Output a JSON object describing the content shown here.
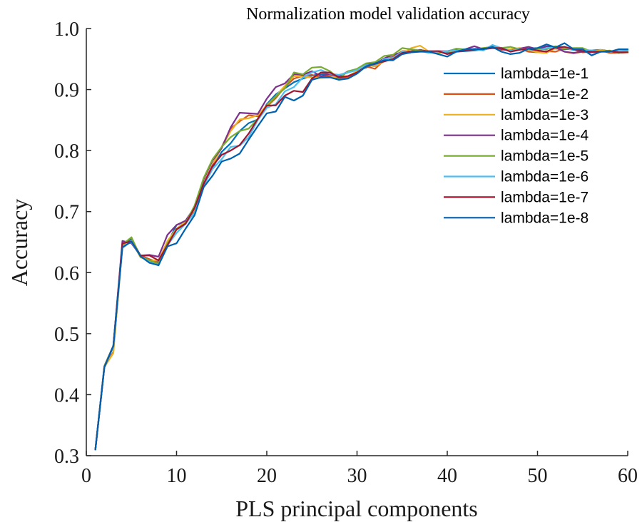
{
  "chart_data": {
    "type": "line",
    "title": "Normalization model validation accuracy",
    "xlabel": "PLS principal components",
    "ylabel": "Accuracy",
    "xlim": [
      0,
      60
    ],
    "ylim": [
      0.3,
      1.0
    ],
    "xticks": [
      "0",
      "10",
      "20",
      "30",
      "40",
      "50",
      "60"
    ],
    "yticks": [
      "0.3",
      "0.4",
      "0.5",
      "0.6",
      "0.7",
      "0.8",
      "0.9",
      "1.0"
    ],
    "grid": false,
    "legend_position": "right",
    "x": [
      1,
      2,
      3,
      4,
      5,
      6,
      7,
      8,
      9,
      10,
      11,
      12,
      13,
      14,
      15,
      16,
      17,
      18,
      19,
      20,
      21,
      22,
      23,
      24,
      25,
      26,
      27,
      28,
      29,
      30,
      31,
      32,
      33,
      34,
      35,
      36,
      37,
      38,
      39,
      40,
      41,
      42,
      43,
      44,
      45,
      46,
      47,
      48,
      49,
      50,
      51,
      52,
      53,
      54,
      55,
      56,
      57,
      58,
      59,
      60
    ],
    "series": [
      {
        "name": "lambda=1e-1",
        "color": "#0072BD",
        "values": [
          0.31,
          0.445,
          0.48,
          0.645,
          0.655,
          0.628,
          0.622,
          0.617,
          0.648,
          0.678,
          0.684,
          0.698,
          0.743,
          0.772,
          0.798,
          0.812,
          0.832,
          0.845,
          0.851,
          0.876,
          0.892,
          0.902,
          0.912,
          0.918,
          0.923,
          0.925,
          0.926,
          0.923,
          0.928,
          0.932,
          0.936,
          0.942,
          0.948,
          0.952,
          0.958,
          0.961,
          0.963,
          0.962,
          0.961,
          0.961,
          0.962,
          0.963,
          0.964,
          0.966,
          0.968,
          0.966,
          0.965,
          0.966,
          0.965,
          0.966,
          0.968,
          0.967,
          0.966,
          0.967,
          0.965,
          0.964,
          0.965,
          0.963,
          0.963,
          0.962
        ]
      },
      {
        "name": "lambda=1e-2",
        "color": "#D95319",
        "values": [
          0.31,
          0.445,
          0.47,
          0.645,
          0.652,
          0.627,
          0.622,
          0.616,
          0.65,
          0.671,
          0.682,
          0.702,
          0.746,
          0.777,
          0.806,
          0.836,
          0.848,
          0.858,
          0.856,
          0.872,
          0.886,
          0.904,
          0.918,
          0.922,
          0.924,
          0.92,
          0.922,
          0.917,
          0.92,
          0.927,
          0.938,
          0.934,
          0.948,
          0.954,
          0.963,
          0.963,
          0.965,
          0.962,
          0.962,
          0.962,
          0.966,
          0.964,
          0.967,
          0.965,
          0.969,
          0.965,
          0.966,
          0.967,
          0.962,
          0.961,
          0.963,
          0.962,
          0.967,
          0.965,
          0.961,
          0.962,
          0.964,
          0.96,
          0.96,
          0.961
        ]
      },
      {
        "name": "lambda=1e-3",
        "color": "#EDB120",
        "values": [
          0.31,
          0.445,
          0.468,
          0.643,
          0.652,
          0.625,
          0.62,
          0.62,
          0.652,
          0.672,
          0.684,
          0.703,
          0.742,
          0.776,
          0.806,
          0.832,
          0.851,
          0.853,
          0.858,
          0.874,
          0.889,
          0.906,
          0.922,
          0.921,
          0.92,
          0.919,
          0.92,
          0.921,
          0.922,
          0.93,
          0.94,
          0.938,
          0.946,
          0.952,
          0.958,
          0.968,
          0.972,
          0.962,
          0.963,
          0.962,
          0.964,
          0.965,
          0.967,
          0.966,
          0.97,
          0.966,
          0.966,
          0.968,
          0.965,
          0.961,
          0.96,
          0.968,
          0.962,
          0.959,
          0.962,
          0.962,
          0.965,
          0.962,
          0.962,
          0.961
        ]
      },
      {
        "name": "lambda=1e-4",
        "color": "#7E2F8E",
        "values": [
          0.31,
          0.447,
          0.48,
          0.652,
          0.648,
          0.628,
          0.629,
          0.626,
          0.662,
          0.678,
          0.685,
          0.707,
          0.753,
          0.784,
          0.804,
          0.838,
          0.862,
          0.861,
          0.86,
          0.885,
          0.904,
          0.91,
          0.925,
          0.924,
          0.93,
          0.922,
          0.925,
          0.921,
          0.93,
          0.932,
          0.941,
          0.942,
          0.951,
          0.957,
          0.961,
          0.962,
          0.965,
          0.962,
          0.963,
          0.963,
          0.966,
          0.966,
          0.971,
          0.966,
          0.972,
          0.966,
          0.964,
          0.967,
          0.97,
          0.966,
          0.971,
          0.969,
          0.962,
          0.96,
          0.962,
          0.961,
          0.962,
          0.963,
          0.96,
          0.962
        ]
      },
      {
        "name": "lambda=1e-5",
        "color": "#77AC30",
        "values": [
          0.31,
          0.447,
          0.48,
          0.646,
          0.658,
          0.626,
          0.62,
          0.614,
          0.648,
          0.67,
          0.681,
          0.71,
          0.755,
          0.786,
          0.806,
          0.822,
          0.832,
          0.836,
          0.852,
          0.872,
          0.889,
          0.902,
          0.928,
          0.925,
          0.936,
          0.937,
          0.93,
          0.918,
          0.93,
          0.934,
          0.943,
          0.945,
          0.955,
          0.957,
          0.968,
          0.966,
          0.964,
          0.962,
          0.96,
          0.962,
          0.967,
          0.966,
          0.966,
          0.968,
          0.97,
          0.968,
          0.97,
          0.966,
          0.967,
          0.966,
          0.966,
          0.971,
          0.967,
          0.968,
          0.968,
          0.962,
          0.962,
          0.964,
          0.96,
          0.962
        ]
      },
      {
        "name": "lambda=1e-6",
        "color": "#4DBEEE",
        "values": [
          0.31,
          0.445,
          0.478,
          0.643,
          0.65,
          0.627,
          0.617,
          0.612,
          0.645,
          0.665,
          0.68,
          0.698,
          0.742,
          0.77,
          0.786,
          0.806,
          0.808,
          0.822,
          0.85,
          0.87,
          0.876,
          0.897,
          0.904,
          0.92,
          0.928,
          0.932,
          0.926,
          0.924,
          0.928,
          0.932,
          0.94,
          0.94,
          0.95,
          0.952,
          0.962,
          0.961,
          0.963,
          0.96,
          0.962,
          0.963,
          0.964,
          0.966,
          0.966,
          0.964,
          0.973,
          0.968,
          0.964,
          0.966,
          0.966,
          0.964,
          0.968,
          0.969,
          0.97,
          0.964,
          0.965,
          0.964,
          0.962,
          0.962,
          0.963,
          0.964
        ]
      },
      {
        "name": "lambda=1e-7",
        "color": "#A2142F",
        "values": [
          0.31,
          0.445,
          0.48,
          0.648,
          0.651,
          0.628,
          0.628,
          0.62,
          0.645,
          0.671,
          0.68,
          0.706,
          0.745,
          0.775,
          0.793,
          0.8,
          0.809,
          0.828,
          0.852,
          0.874,
          0.874,
          0.89,
          0.898,
          0.896,
          0.918,
          0.928,
          0.928,
          0.92,
          0.922,
          0.928,
          0.938,
          0.942,
          0.946,
          0.95,
          0.96,
          0.962,
          0.963,
          0.963,
          0.963,
          0.958,
          0.962,
          0.964,
          0.966,
          0.967,
          0.968,
          0.968,
          0.962,
          0.965,
          0.967,
          0.964,
          0.962,
          0.969,
          0.97,
          0.966,
          0.963,
          0.962,
          0.962,
          0.963,
          0.961,
          0.961
        ]
      },
      {
        "name": "lambda=1e-8",
        "color": "#0060B0",
        "values": [
          0.31,
          0.445,
          0.48,
          0.641,
          0.651,
          0.627,
          0.616,
          0.612,
          0.643,
          0.648,
          0.672,
          0.694,
          0.74,
          0.759,
          0.782,
          0.787,
          0.795,
          0.818,
          0.84,
          0.861,
          0.864,
          0.888,
          0.882,
          0.89,
          0.916,
          0.92,
          0.92,
          0.916,
          0.918,
          0.926,
          0.938,
          0.943,
          0.948,
          0.948,
          0.958,
          0.961,
          0.962,
          0.962,
          0.958,
          0.954,
          0.962,
          0.966,
          0.966,
          0.966,
          0.97,
          0.962,
          0.958,
          0.96,
          0.967,
          0.968,
          0.974,
          0.969,
          0.976,
          0.966,
          0.966,
          0.956,
          0.962,
          0.962,
          0.966,
          0.966
        ]
      }
    ]
  }
}
